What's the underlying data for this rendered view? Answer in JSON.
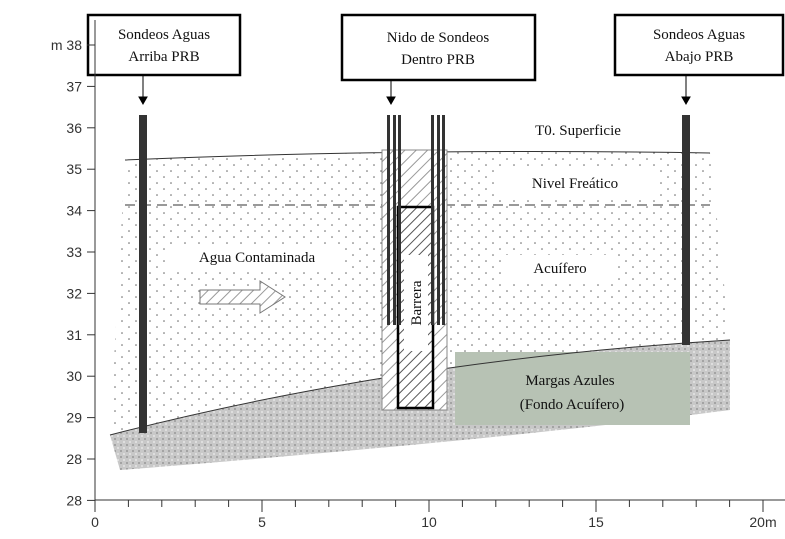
{
  "boxes": [
    {
      "lines": [
        "Sondeos Aguas",
        "Arriba PRB"
      ]
    },
    {
      "lines": [
        "Nido de Sondeos",
        "Dentro PRB"
      ]
    },
    {
      "lines": [
        "Sondeos Aguas",
        "Abajo PRB"
      ]
    }
  ],
  "yaxis": {
    "labels": [
      "m 38",
      "37",
      "36",
      "35",
      "34",
      "33",
      "32",
      "31",
      "30",
      "29",
      "28",
      "28"
    ]
  },
  "xaxis": {
    "labels": [
      "0",
      "5",
      "10",
      "15",
      "20m"
    ]
  },
  "regions": {
    "surface": "T0. Superficie",
    "water_table": "Nivel Freático",
    "flow": "Agua Contaminada",
    "aquifer": "Acuífero",
    "barrier": "Barrera",
    "base": [
      "Margas Azules",
      "(Fondo Acuífero)"
    ]
  }
}
